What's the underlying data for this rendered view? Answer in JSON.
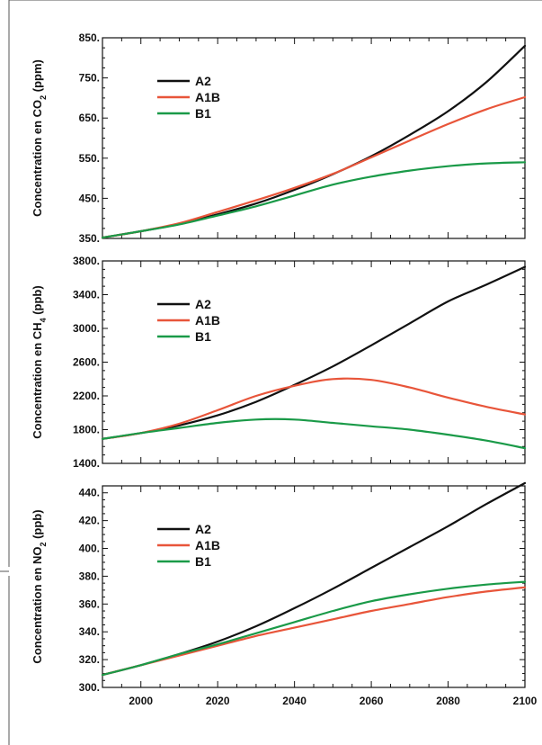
{
  "chart_data": [
    {
      "type": "line",
      "ylabel_parts": [
        "Concentration en CO",
        "2",
        " (ppm)"
      ],
      "ylim": [
        350,
        850
      ],
      "yticks": [
        350,
        450,
        550,
        650,
        750,
        850
      ],
      "ytick_labels": [
        "350.",
        "450.",
        "550.",
        "650.",
        "750.",
        "850."
      ],
      "xlim": [
        1990,
        2100
      ],
      "xticks": [
        2000,
        2020,
        2040,
        2060,
        2080,
        2100
      ],
      "show_xtick_labels": false,
      "legend": [
        "A2",
        "A1B",
        "B1"
      ],
      "series": [
        {
          "name": "A2",
          "color": "#111111",
          "x": [
            1990,
            2000,
            2010,
            2020,
            2030,
            2040,
            2050,
            2060,
            2070,
            2080,
            2090,
            2100
          ],
          "values": [
            352,
            368,
            386,
            410,
            437,
            471,
            510,
            555,
            608,
            667,
            740,
            830
          ]
        },
        {
          "name": "A1B",
          "color": "#e8553a",
          "x": [
            1990,
            2000,
            2010,
            2020,
            2030,
            2040,
            2050,
            2060,
            2070,
            2080,
            2090,
            2100
          ],
          "values": [
            352,
            368,
            388,
            416,
            445,
            476,
            511,
            552,
            594,
            635,
            672,
            702
          ]
        },
        {
          "name": "B1",
          "color": "#1a9a48",
          "x": [
            1990,
            2000,
            2010,
            2020,
            2030,
            2040,
            2050,
            2060,
            2070,
            2080,
            2090,
            2100
          ],
          "values": [
            352,
            368,
            385,
            407,
            430,
            457,
            484,
            504,
            519,
            530,
            537,
            540
          ]
        }
      ]
    },
    {
      "type": "line",
      "ylabel_parts": [
        "Concentration en CH",
        "4",
        " (ppb)"
      ],
      "ylim": [
        1400,
        3800
      ],
      "yticks": [
        1400,
        1800,
        2200,
        2600,
        3000,
        3400,
        3800
      ],
      "ytick_labels": [
        "1400.",
        "1800.",
        "2200.",
        "2600.",
        "3000.",
        "3400.",
        "3800."
      ],
      "xlim": [
        1990,
        2100
      ],
      "xticks": [
        2000,
        2020,
        2040,
        2060,
        2080,
        2100
      ],
      "show_xtick_labels": false,
      "legend": [
        "A2",
        "A1B",
        "B1"
      ],
      "series": [
        {
          "name": "A2",
          "color": "#111111",
          "x": [
            1990,
            2000,
            2010,
            2020,
            2030,
            2040,
            2050,
            2060,
            2070,
            2080,
            2090,
            2100
          ],
          "values": [
            1690,
            1760,
            1850,
            1970,
            2130,
            2330,
            2550,
            2800,
            3060,
            3320,
            3520,
            3730
          ]
        },
        {
          "name": "A1B",
          "color": "#e8553a",
          "x": [
            1990,
            2000,
            2010,
            2020,
            2030,
            2040,
            2050,
            2060,
            2070,
            2080,
            2090,
            2100
          ],
          "values": [
            1690,
            1760,
            1870,
            2030,
            2200,
            2320,
            2400,
            2390,
            2300,
            2180,
            2070,
            1980
          ]
        },
        {
          "name": "B1",
          "color": "#1a9a48",
          "x": [
            1990,
            2000,
            2010,
            2020,
            2030,
            2040,
            2050,
            2060,
            2070,
            2080,
            2090,
            2100
          ],
          "values": [
            1690,
            1760,
            1820,
            1880,
            1920,
            1920,
            1880,
            1840,
            1800,
            1740,
            1670,
            1580
          ]
        }
      ]
    },
    {
      "type": "line",
      "ylabel_parts": [
        "Concentration en NO",
        "2",
        " (ppb)"
      ],
      "ylim": [
        300,
        445
      ],
      "yticks": [
        300,
        320,
        340,
        360,
        380,
        400,
        420,
        440
      ],
      "ytick_labels": [
        "300.",
        "320.",
        "340.",
        "360.",
        "380.",
        "400.",
        "420.",
        "440."
      ],
      "xlim": [
        1990,
        2100
      ],
      "xticks": [
        2000,
        2020,
        2040,
        2060,
        2080,
        2100
      ],
      "xtick_labels": [
        "2000",
        "2020",
        "2040",
        "2060",
        "2080",
        "2100"
      ],
      "show_xtick_labels": true,
      "legend": [
        "A2",
        "A1B",
        "B1"
      ],
      "series": [
        {
          "name": "A2",
          "color": "#111111",
          "x": [
            1990,
            2000,
            2010,
            2020,
            2030,
            2040,
            2050,
            2060,
            2070,
            2080,
            2090,
            2100
          ],
          "values": [
            309,
            316,
            324,
            333,
            344,
            357,
            371,
            386,
            401,
            416,
            432,
            447
          ]
        },
        {
          "name": "A1B",
          "color": "#e8553a",
          "x": [
            1990,
            2000,
            2010,
            2020,
            2030,
            2040,
            2050,
            2060,
            2070,
            2080,
            2090,
            2100
          ],
          "values": [
            309,
            316,
            323,
            330,
            337,
            343,
            349,
            355,
            360,
            365,
            369,
            372
          ]
        },
        {
          "name": "B1",
          "color": "#1a9a48",
          "x": [
            1990,
            2000,
            2010,
            2020,
            2030,
            2040,
            2050,
            2060,
            2070,
            2080,
            2090,
            2100
          ],
          "values": [
            309,
            316,
            324,
            331,
            339,
            347,
            355,
            362,
            367,
            371,
            374,
            376
          ]
        }
      ]
    }
  ]
}
